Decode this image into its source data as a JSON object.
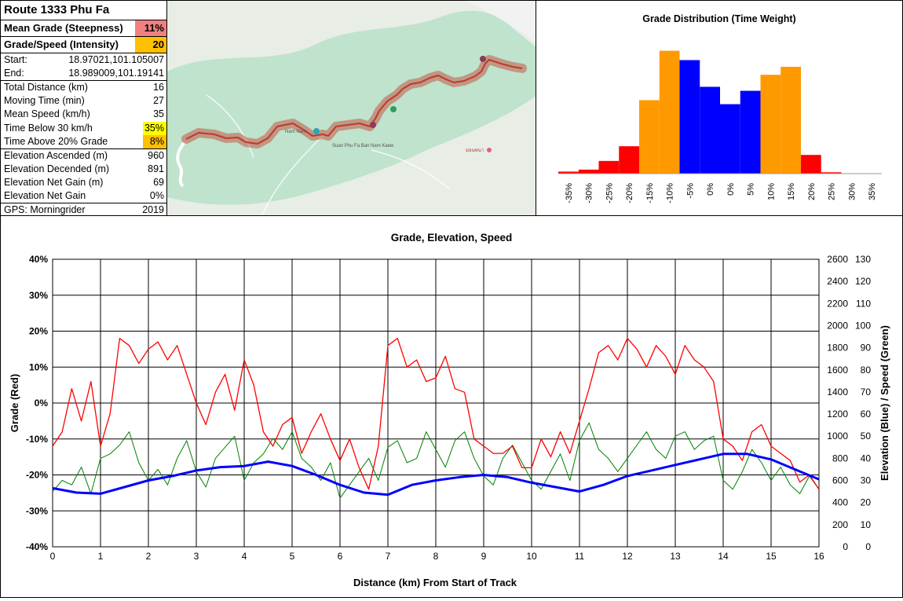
{
  "stats": {
    "title": "Route 1333 Phu Fa",
    "mean_grade_label": "Mean Grade (Steepness)",
    "mean_grade_value": "11%",
    "intensity_label": "Grade/Speed (Intensity)",
    "intensity_value": "20",
    "start_label": "Start:",
    "start_value": "18.97021,101.105007",
    "end_label": "End:",
    "end_value": "18.989009,101.19141",
    "total_distance_label": "Total Distance (km)",
    "total_distance_value": "16",
    "moving_time_label": "Moving Time (min)",
    "moving_time_value": "27",
    "mean_speed_label": "Mean Speed (km/h)",
    "mean_speed_value": "35",
    "below30_label": "Time Below 30 km/h",
    "below30_value": "35%",
    "above20_label": "Time Above 20% Grade",
    "above20_value": "8%",
    "asc_label": "Elevation Ascended (m)",
    "asc_value": "960",
    "desc_label": "Elevation Decended (m)",
    "desc_value": "891",
    "net_gain_label": "Elevation Net Gain (m)",
    "net_gain_value": "69",
    "net_gain_pct_label": "Elevation Net Gain",
    "net_gain_pct_value": "0%",
    "gps_label": "GPS: Morningrider",
    "gps_value": "2019"
  },
  "colors": {
    "mean_grade_bg": "#f08080",
    "intensity_bg": "#ffc000",
    "below30_bg": "#ffff00",
    "above20_bg": "#ffc000",
    "grade_line": "#ff0000",
    "speed_line": "#008000",
    "elev_line": "#0000ff",
    "map_forest": "#bfe3cc",
    "map_route": "#c0392b"
  },
  "map": {
    "labels": [
      "Suan Phu Fa Ban Nam Kaew",
      "Nam Nam",
      "ม่อนพนา"
    ]
  },
  "chart_data": [
    {
      "type": "bar",
      "title": "Grade Distribution (Time Weight)",
      "categories": [
        "-35%",
        "-30%",
        "-25%",
        "-20%",
        "-15%",
        "-10%",
        "-5%",
        "0%",
        "0%",
        "5%",
        "10%",
        "15%",
        "20%",
        "25%",
        "30%",
        "35%"
      ],
      "values": [
        1.5,
        3,
        9.5,
        20.5,
        55,
        92,
        85,
        65,
        52,
        62,
        74,
        80,
        14,
        1,
        0,
        0
      ],
      "colors": [
        "red",
        "red",
        "red",
        "red",
        "orange",
        "orange",
        "blue",
        "blue",
        "blue",
        "blue",
        "orange",
        "orange",
        "red",
        "red",
        "red",
        "red"
      ],
      "ylim": [
        0,
        100
      ]
    },
    {
      "type": "line",
      "title": "Grade, Elevation, Speed",
      "xlabel": "Distance (km) From Start of Track",
      "ylabel_left": "Grade (Red)",
      "ylabel_right": "Elevation (Blue) / Speed (Green)",
      "xlim": [
        0,
        16
      ],
      "xticks": [
        "0",
        "1",
        "2",
        "3",
        "4",
        "5",
        "6",
        "7",
        "8",
        "9",
        "10",
        "11",
        "12",
        "13",
        "14",
        "15",
        "16"
      ],
      "ylim_left": [
        -40,
        40
      ],
      "yticks_left": [
        "40%",
        "30%",
        "20%",
        "10%",
        "0%",
        "-10%",
        "-20%",
        "-30%",
        "-40%"
      ],
      "ylim_elev": [
        0,
        2600
      ],
      "yticks_elev": [
        "2600",
        "2400",
        "2200",
        "2000",
        "1800",
        "1600",
        "1400",
        "1200",
        "1000",
        "800",
        "600",
        "400",
        "200",
        "0"
      ],
      "ylim_speed": [
        0,
        130
      ],
      "yticks_speed": [
        "130",
        "120",
        "110",
        "100",
        "90",
        "80",
        "70",
        "60",
        "50",
        "40",
        "30",
        "20",
        "10",
        "0"
      ],
      "series": [
        {
          "name": "Grade",
          "axis": "left",
          "x": [
            0,
            0.2,
            0.4,
            0.6,
            0.8,
            1.0,
            1.2,
            1.4,
            1.6,
            1.8,
            2.0,
            2.2,
            2.4,
            2.6,
            2.8,
            3.0,
            3.2,
            3.4,
            3.6,
            3.8,
            4.0,
            4.2,
            4.4,
            4.6,
            4.8,
            5.0,
            5.2,
            5.4,
            5.6,
            5.8,
            6.0,
            6.2,
            6.4,
            6.6,
            6.8,
            7.0,
            7.2,
            7.4,
            7.6,
            7.8,
            8.0,
            8.2,
            8.4,
            8.6,
            8.8,
            9.0,
            9.2,
            9.4,
            9.6,
            9.8,
            10.0,
            10.2,
            10.4,
            10.6,
            10.8,
            11.0,
            11.2,
            11.4,
            11.6,
            11.8,
            12.0,
            12.2,
            12.4,
            12.6,
            12.8,
            13.0,
            13.2,
            13.4,
            13.6,
            13.8,
            14.0,
            14.2,
            14.4,
            14.6,
            14.8,
            15.0,
            15.2,
            15.4,
            15.6,
            15.8,
            16.0
          ],
          "values": [
            -12,
            -8,
            4,
            -5,
            6,
            -12,
            -3,
            18,
            16,
            11,
            15,
            17,
            12,
            16,
            8,
            0,
            -6,
            3,
            8,
            -2,
            12,
            5,
            -8,
            -12,
            -6,
            -4,
            -14,
            -8,
            -3,
            -10,
            -16,
            -10,
            -18,
            -24,
            -12,
            16,
            18,
            10,
            12,
            6,
            7,
            13,
            4,
            3,
            -10,
            -12,
            -14,
            -14,
            -12,
            -18,
            -18,
            -10,
            -15,
            -8,
            -14,
            -5,
            4,
            14,
            16,
            12,
            18,
            15,
            10,
            16,
            13,
            8,
            16,
            12,
            10,
            6,
            -10,
            -12,
            -16,
            -8,
            -6,
            -12,
            -14,
            -16,
            -22,
            -20,
            -24
          ]
        },
        {
          "name": "Speed",
          "axis": "right_speed",
          "x": [
            0,
            0.2,
            0.4,
            0.6,
            0.8,
            1.0,
            1.2,
            1.4,
            1.6,
            1.8,
            2.0,
            2.2,
            2.4,
            2.6,
            2.8,
            3.0,
            3.2,
            3.4,
            3.6,
            3.8,
            4.0,
            4.2,
            4.4,
            4.6,
            4.8,
            5.0,
            5.2,
            5.4,
            5.6,
            5.8,
            6.0,
            6.2,
            6.4,
            6.6,
            6.8,
            7.0,
            7.2,
            7.4,
            7.6,
            7.8,
            8.0,
            8.2,
            8.4,
            8.6,
            8.8,
            9.0,
            9.2,
            9.4,
            9.6,
            9.8,
            10.0,
            10.2,
            10.4,
            10.6,
            10.8,
            11.0,
            11.2,
            11.4,
            11.6,
            11.8,
            12.0,
            12.2,
            12.4,
            12.6,
            12.8,
            13.0,
            13.2,
            13.4,
            13.6,
            13.8,
            14.0,
            14.2,
            14.4,
            14.6,
            14.8,
            15.0,
            15.2,
            15.4,
            15.6,
            15.8,
            16.0
          ],
          "values": [
            25,
            30,
            28,
            36,
            24,
            40,
            42,
            46,
            52,
            38,
            30,
            35,
            28,
            40,
            48,
            34,
            27,
            40,
            45,
            50,
            30,
            38,
            42,
            49,
            44,
            52,
            40,
            36,
            30,
            38,
            22,
            28,
            34,
            40,
            30,
            45,
            48,
            38,
            40,
            52,
            44,
            36,
            48,
            52,
            40,
            32,
            28,
            40,
            46,
            38,
            30,
            26,
            34,
            42,
            30,
            48,
            56,
            44,
            40,
            34,
            40,
            46,
            52,
            44,
            40,
            50,
            52,
            44,
            48,
            50,
            30,
            26,
            34,
            44,
            38,
            30,
            36,
            28,
            24,
            32,
            26
          ]
        },
        {
          "name": "Elevation",
          "axis": "right_elev",
          "x": [
            0,
            0.5,
            1.0,
            1.5,
            2.0,
            2.5,
            3.0,
            3.5,
            4.0,
            4.5,
            5.0,
            5.5,
            6.0,
            6.5,
            7.0,
            7.5,
            8.0,
            8.5,
            9.0,
            9.5,
            10.0,
            10.5,
            11.0,
            11.5,
            12.0,
            12.5,
            13.0,
            13.5,
            14.0,
            14.5,
            15.0,
            15.5,
            16.0
          ],
          "values": [
            530,
            490,
            480,
            540,
            600,
            640,
            690,
            720,
            730,
            770,
            730,
            650,
            560,
            490,
            470,
            560,
            600,
            630,
            650,
            630,
            580,
            540,
            500,
            560,
            640,
            690,
            740,
            790,
            840,
            840,
            790,
            700,
            610
          ]
        }
      ]
    }
  ]
}
